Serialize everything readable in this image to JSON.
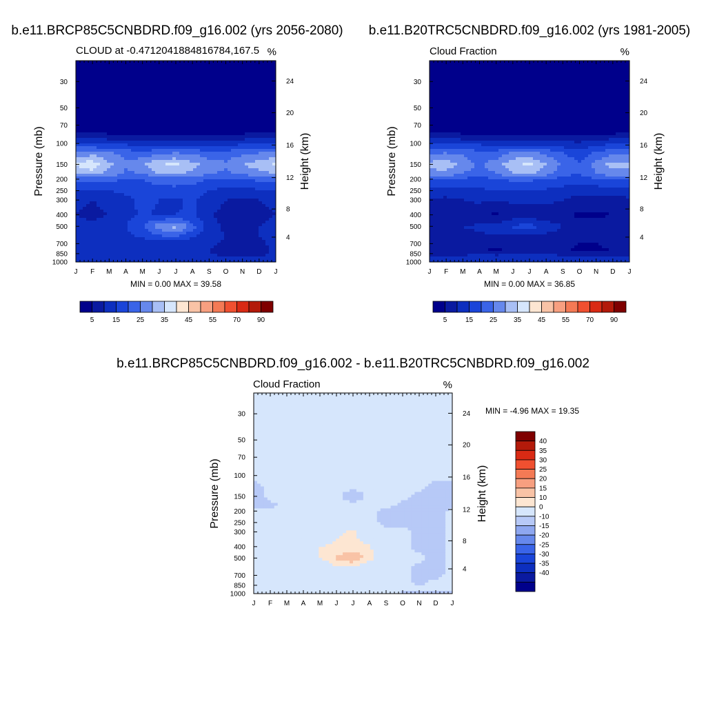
{
  "colors": {
    "abs_levels": [
      "#00008b",
      "#0a1aa0",
      "#0d2fbf",
      "#1a45d9",
      "#3a64e8",
      "#6688ec",
      "#a8bff5",
      "#d6e6fc",
      "#fde6d2",
      "#f9c3a6",
      "#f79f80",
      "#f47a55",
      "#f05030",
      "#d92a14",
      "#b31a0a",
      "#7f0000"
    ],
    "diff_levels": [
      "#00008b",
      "#0a1aa0",
      "#0d2fbf",
      "#1a45d9",
      "#3a64e8",
      "#6688ec",
      "#8ea7f0",
      "#b7c9f7",
      "#d6e6fc",
      "#fde6d2",
      "#f9c3a6",
      "#f79f80",
      "#f47a55",
      "#f05030",
      "#d92a14",
      "#b31a0a",
      "#7f0000"
    ]
  },
  "chart_data": [
    {
      "type": "heatmap",
      "id": "p1",
      "title": "b.e11.BRCP85C5CNBDRD.f09_g16.002 (yrs 2056-2080)",
      "left_label": "CLOUD at -0.4712041884816784,167.5",
      "right_label": "%",
      "ylabel": "Pressure (mb)",
      "y2label": "Height (km)",
      "x_ticks": [
        "J",
        "F",
        "M",
        "A",
        "M",
        "J",
        "J",
        "A",
        "S",
        "O",
        "N",
        "D",
        "J"
      ],
      "y_ticks": [
        "30",
        "50",
        "70",
        "100",
        "150",
        "200",
        "250",
        "300",
        "400",
        "500",
        "700",
        "850",
        "1000"
      ],
      "y2_ticks": [
        "24",
        "20",
        "16",
        "12",
        "8",
        "4"
      ],
      "stats": "MIN =   0.00 MAX =  39.58",
      "colorbar_labels": [
        "5",
        "15",
        "25",
        "35",
        "45",
        "55",
        "70",
        "90"
      ],
      "ylim": [
        1000,
        20
      ],
      "ylog": true,
      "levels": [
        0,
        5,
        10,
        15,
        20,
        25,
        30,
        35,
        40,
        45,
        50,
        55,
        60,
        70,
        80,
        90
      ],
      "months": [
        1,
        2,
        3,
        4,
        5,
        6,
        7,
        8,
        9,
        10,
        11,
        12,
        13
      ],
      "pressure": [
        20,
        40,
        60,
        75,
        85,
        100,
        120,
        150,
        180,
        200,
        250,
        300,
        400,
        500,
        600,
        700,
        800,
        900,
        950,
        1000
      ],
      "values": [
        [
          0,
          0,
          0,
          0,
          0,
          0,
          0,
          0,
          0,
          0,
          0,
          0,
          0
        ],
        [
          0,
          0,
          0,
          0,
          0,
          0,
          0,
          0,
          0,
          0,
          0,
          0,
          0
        ],
        [
          0,
          0,
          0,
          0,
          0,
          0,
          0,
          0,
          0,
          0,
          0,
          0,
          0
        ],
        [
          2,
          1,
          1,
          1,
          0,
          0,
          0,
          0,
          0,
          0,
          1,
          1,
          2
        ],
        [
          8,
          7,
          6,
          6,
          5,
          5,
          5,
          5,
          5,
          5,
          6,
          7,
          8
        ],
        [
          16,
          15,
          14,
          14,
          13,
          13,
          13,
          13,
          12,
          13,
          14,
          15,
          16
        ],
        [
          26,
          28,
          26,
          23,
          22,
          24,
          25,
          24,
          22,
          22,
          24,
          25,
          26
        ],
        [
          36,
          39,
          31,
          26,
          29,
          35,
          36,
          32,
          28,
          26,
          30,
          33,
          36
        ],
        [
          30,
          32,
          28,
          24,
          25,
          30,
          31,
          28,
          25,
          24,
          26,
          28,
          30
        ],
        [
          22,
          22,
          21,
          20,
          20,
          22,
          23,
          22,
          20,
          19,
          20,
          21,
          22
        ],
        [
          15,
          14,
          15,
          16,
          17,
          18,
          18,
          17,
          15,
          13,
          13,
          14,
          15
        ],
        [
          11,
          10,
          11,
          14,
          16,
          15,
          14,
          16,
          12,
          10,
          9,
          10,
          11
        ],
        [
          10,
          9,
          10,
          13,
          16,
          14,
          15,
          16,
          11,
          8,
          6,
          9,
          10
        ],
        [
          11,
          11,
          12,
          15,
          20,
          28,
          32,
          22,
          12,
          9,
          8,
          10,
          11
        ],
        [
          12,
          12,
          13,
          14,
          16,
          20,
          21,
          16,
          12,
          10,
          9,
          10,
          12
        ],
        [
          13,
          13,
          12,
          12,
          12,
          12,
          12,
          11,
          11,
          9,
          7,
          8,
          13
        ],
        [
          12,
          12,
          11,
          11,
          12,
          12,
          12,
          11,
          10,
          7,
          6,
          7,
          12
        ],
        [
          11,
          11,
          11,
          12,
          12,
          12,
          12,
          12,
          11,
          10,
          10,
          10,
          11
        ],
        [
          15,
          15,
          15,
          15,
          15,
          15,
          15,
          15,
          15,
          15,
          15,
          15,
          15
        ],
        [
          6,
          6,
          6,
          6,
          6,
          6,
          6,
          6,
          6,
          6,
          6,
          6,
          6
        ]
      ]
    },
    {
      "type": "heatmap",
      "id": "p2",
      "title": "b.e11.B20TRC5CNBDRD.f09_g16.002 (yrs 1981-2005)",
      "left_label": "Cloud Fraction",
      "right_label": "%",
      "ylabel": "Pressure (mb)",
      "y2label": "Height (km)",
      "x_ticks": [
        "J",
        "F",
        "M",
        "A",
        "M",
        "J",
        "J",
        "A",
        "S",
        "O",
        "N",
        "D",
        "J"
      ],
      "y_ticks": [
        "30",
        "50",
        "70",
        "100",
        "150",
        "200",
        "250",
        "300",
        "400",
        "500",
        "700",
        "850",
        "1000"
      ],
      "y2_ticks": [
        "24",
        "20",
        "16",
        "12",
        "8",
        "4"
      ],
      "stats": "MIN =   0.00 MAX =  36.85",
      "colorbar_labels": [
        "5",
        "15",
        "25",
        "35",
        "45",
        "55",
        "70",
        "90"
      ],
      "ylim": [
        1000,
        20
      ],
      "ylog": true,
      "levels": [
        0,
        5,
        10,
        15,
        20,
        25,
        30,
        35,
        40,
        45,
        50,
        55,
        60,
        70,
        80,
        90
      ],
      "months": [
        1,
        2,
        3,
        4,
        5,
        6,
        7,
        8,
        9,
        10,
        11,
        12,
        13
      ],
      "pressure": [
        20,
        40,
        60,
        75,
        85,
        100,
        120,
        150,
        180,
        200,
        250,
        300,
        400,
        500,
        600,
        700,
        800,
        900,
        950,
        1000
      ],
      "values": [
        [
          0,
          0,
          0,
          0,
          0,
          0,
          0,
          0,
          0,
          0,
          0,
          0,
          0
        ],
        [
          0,
          0,
          0,
          0,
          0,
          0,
          0,
          0,
          0,
          0,
          0,
          0,
          0
        ],
        [
          0,
          0,
          0,
          0,
          0,
          0,
          0,
          0,
          0,
          0,
          0,
          0,
          0
        ],
        [
          2,
          1,
          1,
          1,
          0,
          0,
          0,
          0,
          0,
          0,
          1,
          1,
          2
        ],
        [
          8,
          7,
          6,
          6,
          5,
          5,
          5,
          5,
          5,
          4,
          5,
          6,
          8
        ],
        [
          16,
          15,
          14,
          14,
          13,
          13,
          13,
          12,
          12,
          11,
          13,
          15,
          16
        ],
        [
          24,
          25,
          24,
          22,
          22,
          26,
          26,
          24,
          20,
          17,
          21,
          24,
          24
        ],
        [
          32,
          33,
          28,
          24,
          28,
          34,
          36,
          30,
          24,
          21,
          27,
          32,
          32
        ],
        [
          28,
          28,
          25,
          22,
          25,
          30,
          31,
          27,
          22,
          20,
          25,
          28,
          28
        ],
        [
          20,
          20,
          19,
          18,
          20,
          21,
          21,
          20,
          18,
          17,
          19,
          20,
          20
        ],
        [
          13,
          12,
          13,
          14,
          15,
          15,
          15,
          14,
          13,
          12,
          12,
          12,
          13
        ],
        [
          9,
          9,
          10,
          11,
          10,
          11,
          11,
          11,
          10,
          8,
          8,
          8,
          9
        ],
        [
          5,
          5,
          6,
          6,
          4,
          7,
          7,
          7,
          6,
          4,
          4,
          5,
          5
        ],
        [
          10,
          10,
          10,
          11,
          12,
          16,
          17,
          13,
          10,
          8,
          8,
          9,
          10
        ],
        [
          8,
          8,
          9,
          9,
          10,
          10,
          10,
          9,
          8,
          6,
          6,
          7,
          8
        ],
        [
          6,
          6,
          7,
          7,
          6,
          8,
          8,
          7,
          7,
          5,
          5,
          6,
          6
        ],
        [
          5,
          5,
          6,
          6,
          4,
          6,
          6,
          6,
          6,
          4,
          4,
          5,
          5
        ],
        [
          11,
          11,
          11,
          12,
          12,
          12,
          12,
          12,
          11,
          10,
          10,
          11,
          11
        ],
        [
          18,
          18,
          18,
          18,
          18,
          18,
          18,
          18,
          18,
          18,
          18,
          18,
          18
        ],
        [
          4,
          4,
          4,
          4,
          4,
          4,
          4,
          4,
          4,
          4,
          4,
          4,
          4
        ]
      ]
    },
    {
      "type": "heatmap",
      "id": "p3",
      "title": "b.e11.BRCP85C5CNBDRD.f09_g16.002 - b.e11.B20TRC5CNBDRD.f09_g16.002",
      "left_label": "Cloud Fraction",
      "right_label": "%",
      "ylabel": "Pressure (mb)",
      "y2label": "Height (km)",
      "x_ticks": [
        "J",
        "F",
        "M",
        "A",
        "M",
        "J",
        "J",
        "A",
        "S",
        "O",
        "N",
        "D",
        "J"
      ],
      "y_ticks": [
        "30",
        "50",
        "70",
        "100",
        "150",
        "200",
        "250",
        "300",
        "400",
        "500",
        "700",
        "850",
        "1000"
      ],
      "y2_ticks": [
        "24",
        "20",
        "16",
        "12",
        "8",
        "4"
      ],
      "stats": "MIN =  -4.96 MAX =  19.35",
      "colorbar_labels": [
        "40",
        "35",
        "30",
        "25",
        "20",
        "15",
        "10",
        "0",
        "-10",
        "-15",
        "-20",
        "-25",
        "-30",
        "-35",
        "-40"
      ],
      "ylim": [
        1000,
        20
      ],
      "ylog": true,
      "levels": [
        -45,
        -40,
        -35,
        -30,
        -25,
        -20,
        -15,
        -10,
        0,
        10,
        15,
        20,
        25,
        30,
        35,
        40,
        45
      ],
      "months": [
        1,
        2,
        3,
        4,
        5,
        6,
        7,
        8,
        9,
        10,
        11,
        12,
        13
      ],
      "pressure": [
        20,
        40,
        60,
        75,
        85,
        100,
        120,
        150,
        180,
        200,
        250,
        300,
        400,
        500,
        600,
        700,
        800,
        900,
        950,
        1000
      ],
      "values": [
        [
          1,
          1,
          1,
          1,
          1,
          1,
          1,
          1,
          1,
          1,
          1,
          1,
          1
        ],
        [
          1,
          1,
          1,
          1,
          1,
          1,
          1,
          1,
          1,
          1,
          1,
          1,
          1
        ],
        [
          1,
          1,
          1,
          1,
          1,
          1,
          1,
          1,
          1,
          1,
          1,
          1,
          1
        ],
        [
          1,
          1,
          1,
          1,
          1,
          1,
          1,
          1,
          1,
          1,
          1,
          1,
          1
        ],
        [
          1,
          1,
          1,
          1,
          1,
          1,
          1,
          1,
          1,
          1,
          1,
          1,
          1
        ],
        [
          1,
          1,
          1,
          1,
          1,
          1,
          1,
          1,
          1,
          1,
          1,
          1,
          1
        ],
        [
          -1,
          1,
          1,
          1,
          1,
          1,
          1,
          1,
          1,
          1,
          1,
          -1,
          -1
        ],
        [
          -2,
          1,
          1,
          1,
          1,
          1,
          -2,
          1,
          1,
          1,
          -1,
          -2,
          -2
        ],
        [
          -1,
          -1,
          1,
          1,
          1,
          1,
          1,
          1,
          1,
          -1,
          -1,
          -2,
          -1
        ],
        [
          1,
          1,
          1,
          1,
          1,
          1,
          1,
          1,
          -1,
          -1,
          -1,
          -2,
          1
        ],
        [
          1,
          1,
          1,
          1,
          1,
          1,
          1,
          1,
          -1,
          -1,
          -1,
          -1,
          1
        ],
        [
          1,
          1,
          1,
          1,
          1,
          8,
          12,
          1,
          1,
          1,
          -1,
          -1,
          1
        ],
        [
          1,
          1,
          1,
          1,
          10,
          12,
          13,
          11,
          1,
          1,
          -1,
          -1,
          1
        ],
        [
          1,
          1,
          1,
          1,
          10,
          16,
          19,
          13,
          1,
          1,
          1,
          -1,
          1
        ],
        [
          1,
          1,
          1,
          1,
          1,
          9,
          10,
          1,
          1,
          1,
          -1,
          -1,
          1
        ],
        [
          1,
          1,
          1,
          1,
          1,
          1,
          1,
          1,
          1,
          1,
          -1,
          -1,
          1
        ],
        [
          1,
          1,
          1,
          1,
          1,
          1,
          1,
          1,
          1,
          1,
          -1,
          1,
          1
        ],
        [
          1,
          1,
          1,
          1,
          1,
          1,
          1,
          1,
          1,
          1,
          1,
          1,
          1
        ],
        [
          -1,
          1,
          1,
          1,
          1,
          1,
          1,
          1,
          1,
          -1,
          -1,
          -1,
          -1
        ],
        [
          1,
          1,
          1,
          1,
          1,
          1,
          1,
          1,
          1,
          1,
          1,
          1,
          1
        ]
      ]
    }
  ]
}
